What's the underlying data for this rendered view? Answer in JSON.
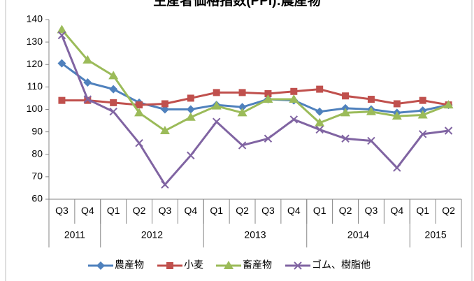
{
  "chart_data": {
    "type": "line",
    "title": "生産者価格指数(PPI):農産物",
    "categories": [
      "Q3",
      "Q4",
      "Q1",
      "Q2",
      "Q3",
      "Q4",
      "Q1",
      "Q2",
      "Q3",
      "Q4",
      "Q1",
      "Q2",
      "Q3",
      "Q4",
      "Q1",
      "Q2"
    ],
    "category_groups": [
      {
        "label": "2011",
        "span": 2
      },
      {
        "label": "2012",
        "span": 4
      },
      {
        "label": "2013",
        "span": 4
      },
      {
        "label": "2014",
        "span": 4
      },
      {
        "label": "2015",
        "span": 2
      }
    ],
    "ylim": [
      60,
      140
    ],
    "yticks": [
      60,
      70,
      80,
      90,
      100,
      110,
      120,
      130,
      140
    ],
    "grid": false,
    "legend": "bottom",
    "series": [
      {
        "name": "農産物",
        "color": "#4f81bd",
        "marker": "diamond",
        "values": [
          120.5,
          112,
          109,
          103,
          100,
          100,
          102,
          101,
          104.5,
          104,
          99,
          100.5,
          100,
          98.5,
          99.5,
          102
        ]
      },
      {
        "name": "小麦",
        "color": "#c0504d",
        "marker": "square",
        "values": [
          104,
          104,
          103,
          102,
          102.5,
          105,
          107.5,
          107.5,
          107,
          108,
          109,
          106,
          104.5,
          102.5,
          104,
          102
        ]
      },
      {
        "name": "畜産物",
        "color": "#9bbb59",
        "marker": "triangle",
        "values": [
          135.5,
          122,
          115,
          98.5,
          90.5,
          96.5,
          101.5,
          98.5,
          104.5,
          104.5,
          94,
          98.5,
          99,
          97,
          97.5,
          102
        ]
      },
      {
        "name": "ゴム、樹脂他",
        "color": "#8064a2",
        "marker": "x",
        "values": [
          133,
          104.5,
          99,
          85,
          66.5,
          79.5,
          94.5,
          84,
          87,
          95.5,
          91,
          87,
          86,
          74,
          89,
          90.5
        ]
      }
    ]
  }
}
